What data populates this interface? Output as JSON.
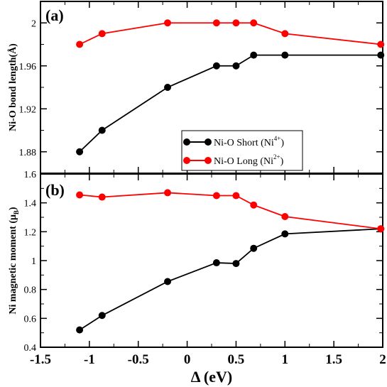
{
  "chart_data": [
    {
      "type": "line",
      "panel_label": "(a)",
      "ylabel": "Ni-O bond length(Å)",
      "ylim": [
        1.86,
        2.02
      ],
      "yticks": [
        {
          "value": 1.88,
          "label": "1.88"
        },
        {
          "value": 1.92,
          "label": "1.92"
        },
        {
          "value": 1.96,
          "label": "1.96"
        },
        {
          "value": 2.0,
          "label": "2"
        }
      ],
      "series": [
        {
          "name_main": "Ni-O  Short (Ni",
          "name_sup": "4+",
          "name_end": ")",
          "color": "#000000",
          "x": [
            -1.1,
            -0.87,
            -0.2,
            0.3,
            0.5,
            0.68,
            1.0,
            1.98
          ],
          "y": [
            1.88,
            1.9,
            1.94,
            1.96,
            1.96,
            1.97,
            1.97,
            1.97
          ]
        },
        {
          "name_main": "Ni-O  Long (Ni",
          "name_sup": "2+",
          "name_end": ")",
          "color": "#ff0000",
          "x": [
            -1.1,
            -0.87,
            -0.2,
            0.3,
            0.5,
            0.68,
            1.0,
            1.98
          ],
          "y": [
            1.98,
            1.99,
            2.0,
            2.0,
            2.0,
            2.0,
            1.99,
            1.98
          ]
        }
      ],
      "legend": "center-right"
    },
    {
      "type": "line",
      "panel_label": "(b)",
      "ylabel_main": "Ni magnetic moment (μ",
      "ylabel_sub": "B",
      "ylabel_end": ")",
      "ylim": [
        0.4,
        1.6
      ],
      "yticks": [
        {
          "value": 0.4,
          "label": "0.4"
        },
        {
          "value": 0.6,
          "label": "0.6"
        },
        {
          "value": 0.8,
          "label": "0.8"
        },
        {
          "value": 1.0,
          "label": "1"
        },
        {
          "value": 1.2,
          "label": "1.2"
        },
        {
          "value": 1.4,
          "label": "1.4"
        },
        {
          "value": 1.6,
          "label": "1.6"
        }
      ],
      "xlabel": "Δ (eV)",
      "xlim": [
        -1.5,
        2.0
      ],
      "xticks": [
        {
          "value": -1.5,
          "label": "-1.5"
        },
        {
          "value": -1.0,
          "label": "-1"
        },
        {
          "value": -0.5,
          "label": "-0.5"
        },
        {
          "value": 0.0,
          "label": "0"
        },
        {
          "value": 0.5,
          "label": "0.5"
        },
        {
          "value": 1.0,
          "label": "1"
        },
        {
          "value": 1.5,
          "label": "1.5"
        },
        {
          "value": 2.0,
          "label": "2"
        }
      ],
      "series": [
        {
          "color": "#000000",
          "x": [
            -1.1,
            -0.87,
            -0.2,
            0.3,
            0.5,
            0.68,
            1.0,
            1.98
          ],
          "y": [
            0.52,
            0.62,
            0.855,
            0.985,
            0.98,
            1.085,
            1.185,
            1.22
          ]
        },
        {
          "color": "#ff0000",
          "x": [
            -1.1,
            -0.87,
            -0.2,
            0.3,
            0.5,
            0.68,
            1.0,
            1.98
          ],
          "y": [
            1.455,
            1.44,
            1.47,
            1.45,
            1.45,
            1.385,
            1.305,
            1.22
          ]
        }
      ]
    }
  ]
}
